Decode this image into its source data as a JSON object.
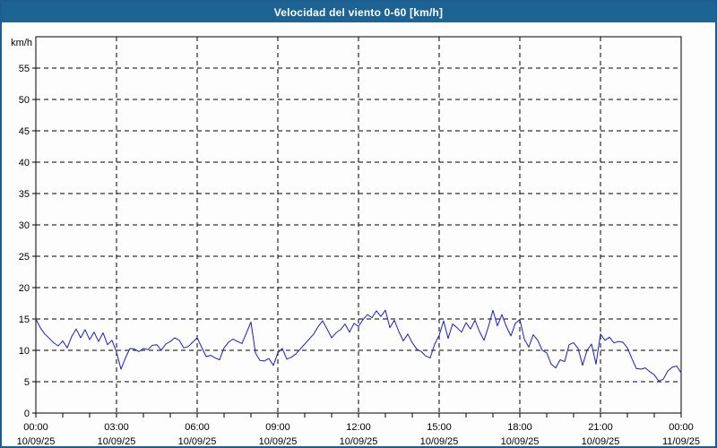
{
  "window": {
    "title": "Velocidad del viento 0-60 [km/h]"
  },
  "colors": {
    "titlebar_bg": "#1d6394",
    "window_border": "#1c5e8e",
    "page_bg": "#fcfdfc",
    "axis": "#000000",
    "line": "#1c1cc8"
  },
  "chart_data": {
    "type": "line",
    "title": "Velocidad del viento 0-60 [km/h]",
    "ylabel": "km/h",
    "ylim": [
      0,
      60
    ],
    "ytick_interval": 5,
    "ytick_labels": [
      "0",
      "5",
      "10",
      "15",
      "20",
      "25",
      "30",
      "35",
      "40",
      "45",
      "50",
      "55"
    ],
    "grid": "dashed",
    "legend_position": "none",
    "x_hours_range": [
      0,
      24
    ],
    "minor_xtick_every_hours": 1,
    "major_xtick_every_hours": 3,
    "xticks": [
      {
        "hour": 0,
        "time": "00:00",
        "date": "10/09/25"
      },
      {
        "hour": 3,
        "time": "03:00",
        "date": "10/09/25"
      },
      {
        "hour": 6,
        "time": "06:00",
        "date": "10/09/25"
      },
      {
        "hour": 9,
        "time": "09:00",
        "date": "10/09/25"
      },
      {
        "hour": 12,
        "time": "12:00",
        "date": "10/09/25"
      },
      {
        "hour": 15,
        "time": "15:00",
        "date": "10/09/25"
      },
      {
        "hour": 18,
        "time": "18:00",
        "date": "10/09/25"
      },
      {
        "hour": 21,
        "time": "21:00",
        "date": "10/09/25"
      },
      {
        "hour": 24,
        "time": "00:00",
        "date": "11/09/25"
      }
    ],
    "series": [
      {
        "name": "Velocidad del viento",
        "color": "#1c1cc8",
        "interval_minutes": 10,
        "start_hour": 0,
        "values": [
          15.0,
          13.6,
          12.6,
          11.9,
          11.2,
          10.7,
          11.5,
          10.4,
          12.2,
          13.4,
          12.0,
          13.3,
          11.7,
          12.9,
          11.4,
          12.8,
          10.9,
          11.6,
          9.7,
          7.0,
          8.8,
          10.3,
          10.2,
          9.8,
          10.3,
          10.1,
          10.8,
          10.9,
          10.0,
          11.0,
          11.4,
          12.0,
          11.6,
          10.4,
          10.6,
          11.3,
          12.0,
          10.5,
          9.0,
          9.2,
          8.8,
          8.5,
          10.4,
          11.3,
          11.8,
          11.4,
          11.1,
          12.8,
          14.5,
          9.6,
          8.4,
          8.3,
          8.7,
          7.6,
          9.6,
          10.3,
          8.6,
          8.9,
          9.4,
          10.2,
          11.0,
          11.8,
          12.6,
          13.8,
          14.7,
          13.4,
          12.0,
          12.8,
          13.3,
          14.2,
          12.9,
          14.3,
          13.8,
          14.9,
          15.7,
          15.2,
          16.3,
          15.4,
          16.4,
          13.6,
          14.8,
          13.0,
          11.5,
          12.6,
          11.2,
          10.2,
          9.8,
          9.1,
          8.8,
          11.0,
          12.4,
          14.7,
          11.9,
          14.2,
          13.6,
          12.9,
          14.4,
          13.4,
          14.8,
          13.0,
          11.6,
          13.8,
          16.4,
          13.9,
          15.7,
          13.8,
          12.3,
          14.3,
          14.9,
          11.8,
          10.5,
          12.5,
          11.6,
          10.0,
          9.6,
          7.8,
          7.2,
          8.5,
          8.2,
          10.9,
          11.2,
          10.3,
          7.6,
          10.0,
          11.0,
          7.8,
          12.6,
          11.6,
          12.1,
          11.2,
          11.4,
          11.3,
          10.4,
          8.7,
          7.1,
          7.0,
          7.2,
          6.6,
          6.1,
          5.1,
          5.4,
          6.7,
          7.3,
          7.5,
          6.4
        ]
      }
    ]
  }
}
